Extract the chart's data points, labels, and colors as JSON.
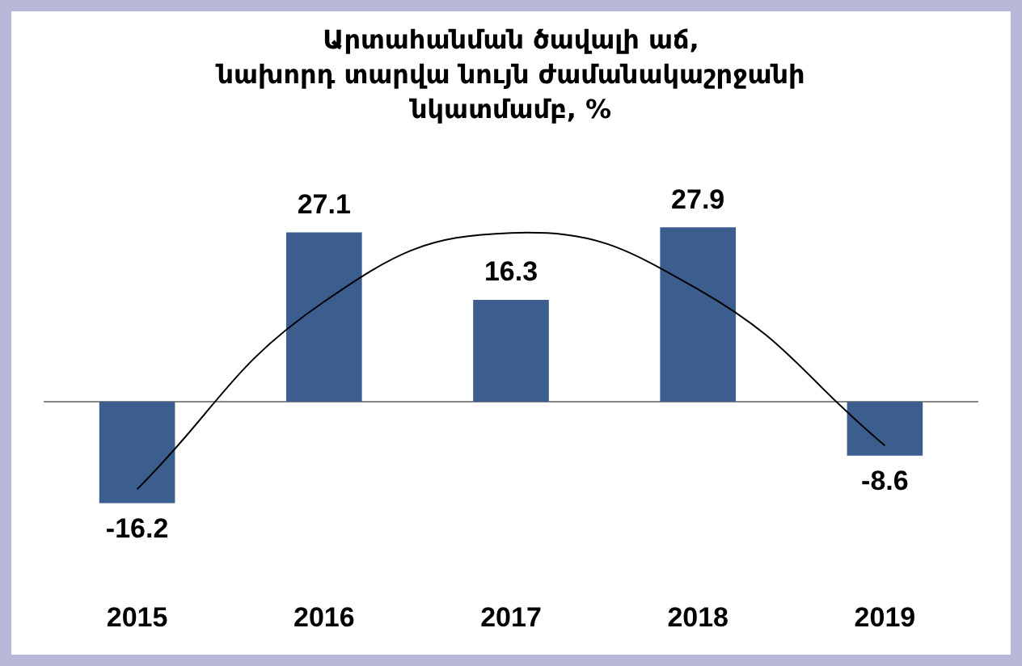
{
  "chart_data": {
    "type": "bar",
    "title": "Արտահանման ծավալի աճ,\nնախորդ տարվա նույն ժամանակաշրջանի\nնկատմամբ, %",
    "categories": [
      "2015",
      "2016",
      "2017",
      "2018",
      "2019"
    ],
    "series": [
      {
        "color": "#3b5e8f",
        "values": [
          -16.2,
          27.1,
          16.3,
          27.9,
          -8.6
        ],
        "value_labels": [
          "-16.2",
          "27.1",
          "16.3",
          "27.9",
          "-8.6"
        ]
      },
      {
        "type": "line",
        "color": "#000000",
        "values": [
          -14,
          16,
          27,
          18,
          -7
        ],
        "marker": "none"
      }
    ],
    "grid": false,
    "legend": false
  }
}
